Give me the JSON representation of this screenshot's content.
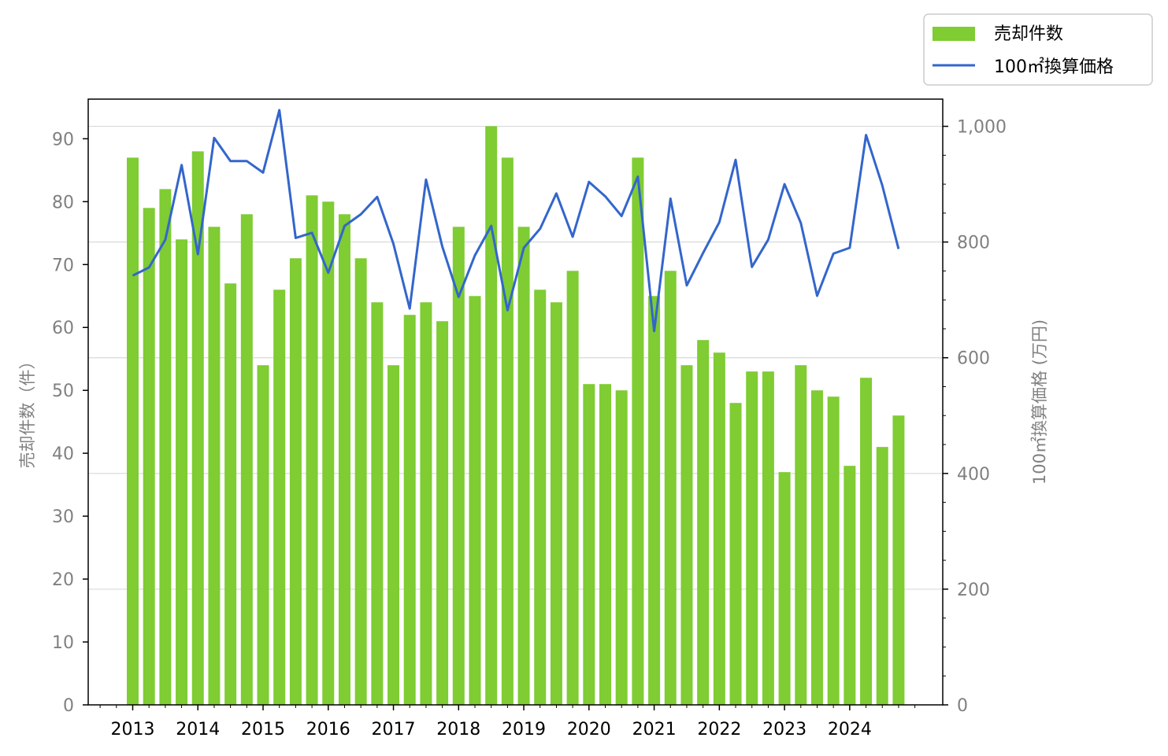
{
  "chart_data": {
    "type": "bar",
    "x_ticks": [
      "2013",
      "2014",
      "2015",
      "2016",
      "2017",
      "2018",
      "2019",
      "2020",
      "2021",
      "2022",
      "2023",
      "2024"
    ],
    "ylabel_left": "売却件数（件）",
    "ylabel_right": "100㎡換算価格 (万円)",
    "y_left_ticks": [
      "0",
      "10",
      "20",
      "30",
      "40",
      "50",
      "60",
      "70",
      "80",
      "90"
    ],
    "y_right_ticks": [
      "0",
      "200",
      "400",
      "600",
      "800",
      "1,000"
    ],
    "ylim_left": [
      0,
      96.3
    ],
    "ylim_right": [
      0,
      1047
    ],
    "grid": "horizontal, right axis",
    "legend_position": "top-right",
    "colors": {
      "bars": "#7fcc33",
      "line": "#3366cc",
      "axis_text": "#808080",
      "grid": "#d9d9d9"
    },
    "series": [
      {
        "name": "売却件数",
        "type": "bar",
        "axis": "left",
        "values": [
          87,
          79,
          82,
          74,
          88,
          76,
          67,
          78,
          54,
          66,
          71,
          81,
          80,
          78,
          71,
          64,
          54,
          62,
          64,
          61,
          76,
          65,
          92,
          87,
          76,
          66,
          64,
          69,
          51,
          51,
          50,
          87,
          65,
          69,
          54,
          58,
          56,
          48,
          53,
          53,
          37,
          54,
          50,
          49,
          38,
          52,
          41,
          46
        ]
      },
      {
        "name": "100㎡換算価格",
        "type": "line",
        "axis": "right",
        "values": [
          742,
          756,
          804,
          933,
          779,
          980,
          940,
          940,
          920,
          1028,
          807,
          816,
          747,
          828,
          848,
          878,
          797,
          685,
          908,
          792,
          705,
          777,
          828,
          682,
          790,
          823,
          884,
          809,
          904,
          879,
          845,
          913,
          646,
          875,
          725,
          781,
          834,
          942,
          757,
          804,
          900,
          833,
          707,
          780,
          790,
          985,
          898,
          788
        ]
      }
    ]
  }
}
